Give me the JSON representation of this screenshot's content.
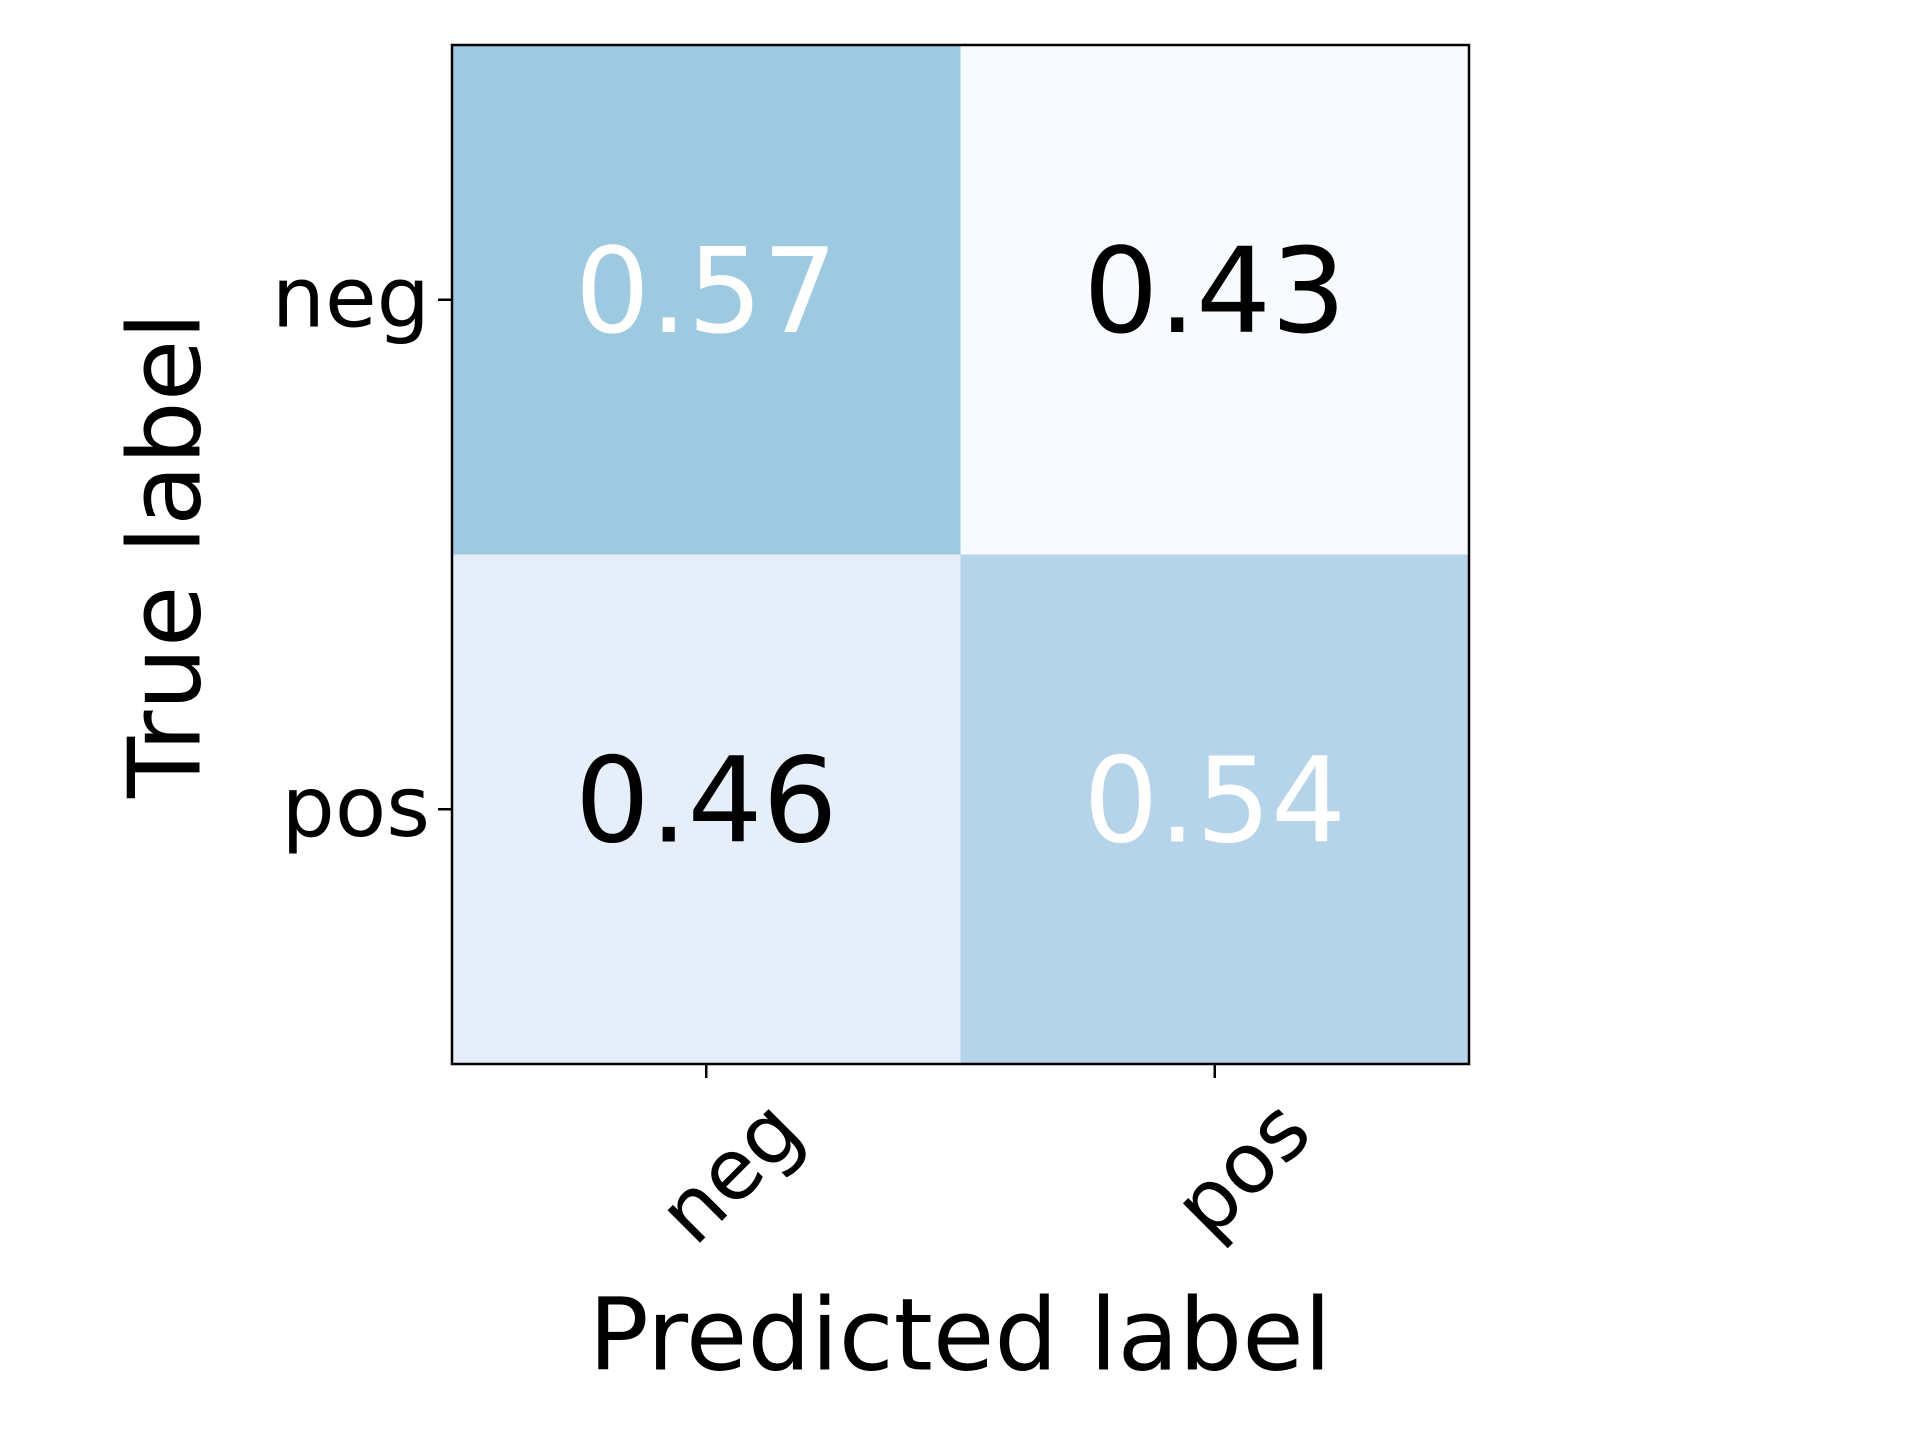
{
  "chart_data": {
    "type": "heatmap",
    "x_label": "Predicted label",
    "y_label": "True label",
    "x_categories": [
      "neg",
      "pos"
    ],
    "y_categories": [
      "neg",
      "pos"
    ],
    "values": [
      [
        0.57,
        0.43
      ],
      [
        0.46,
        0.54
      ]
    ],
    "cell_colors": [
      [
        "#9ecae1",
        "#f7fbff"
      ],
      [
        "#e6eff9",
        "#b5d4e9"
      ]
    ],
    "text_colors": [
      [
        "#ffffff",
        "#000000"
      ],
      [
        "#000000",
        "#ffffff"
      ]
    ]
  }
}
